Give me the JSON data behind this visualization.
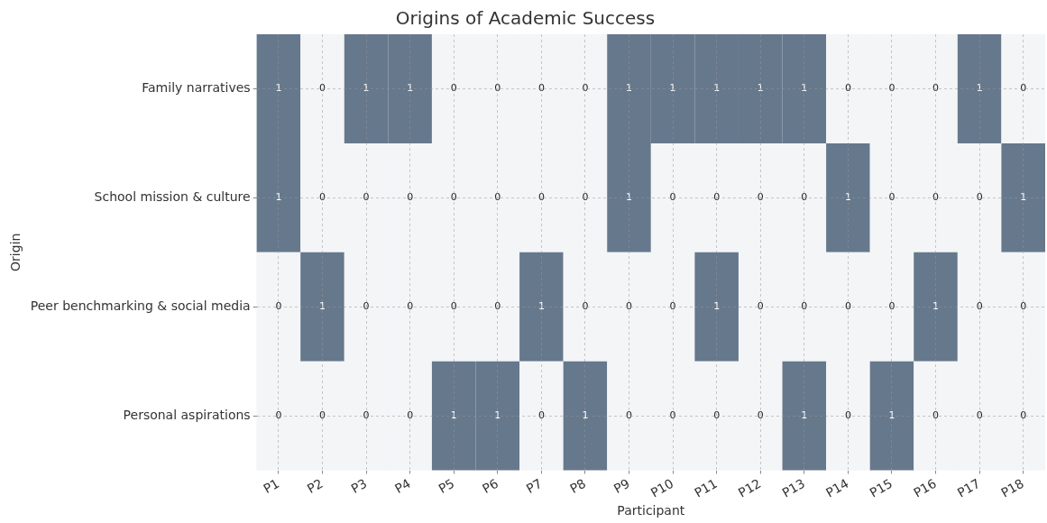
{
  "chart_data": {
    "type": "heatmap",
    "title": "Origins of Academic Success",
    "xlabel": "Participant",
    "ylabel": "Origin",
    "categories": [
      "P1",
      "P2",
      "P3",
      "P4",
      "P5",
      "P6",
      "P7",
      "P8",
      "P9",
      "P10",
      "P11",
      "P12",
      "P13",
      "P14",
      "P15",
      "P16",
      "P17",
      "P18"
    ],
    "y_categories": [
      "Family narratives",
      "School mission & culture",
      "Peer benchmarking & social media",
      "Personal aspirations"
    ],
    "cells": [
      [
        1,
        0,
        1,
        1,
        0,
        0,
        0,
        0,
        1,
        1,
        1,
        1,
        1,
        0,
        0,
        0,
        1,
        0
      ],
      [
        1,
        0,
        0,
        0,
        0,
        0,
        0,
        0,
        1,
        0,
        0,
        0,
        0,
        1,
        0,
        0,
        0,
        1
      ],
      [
        0,
        1,
        0,
        0,
        0,
        0,
        1,
        0,
        0,
        0,
        1,
        0,
        0,
        0,
        0,
        1,
        0,
        0
      ],
      [
        0,
        0,
        0,
        0,
        1,
        1,
        0,
        1,
        0,
        0,
        0,
        0,
        1,
        0,
        1,
        0,
        0,
        0
      ]
    ],
    "colors": [
      "#f3f5f7",
      "#66788c"
    ],
    "data_labels": true,
    "grid": true
  }
}
